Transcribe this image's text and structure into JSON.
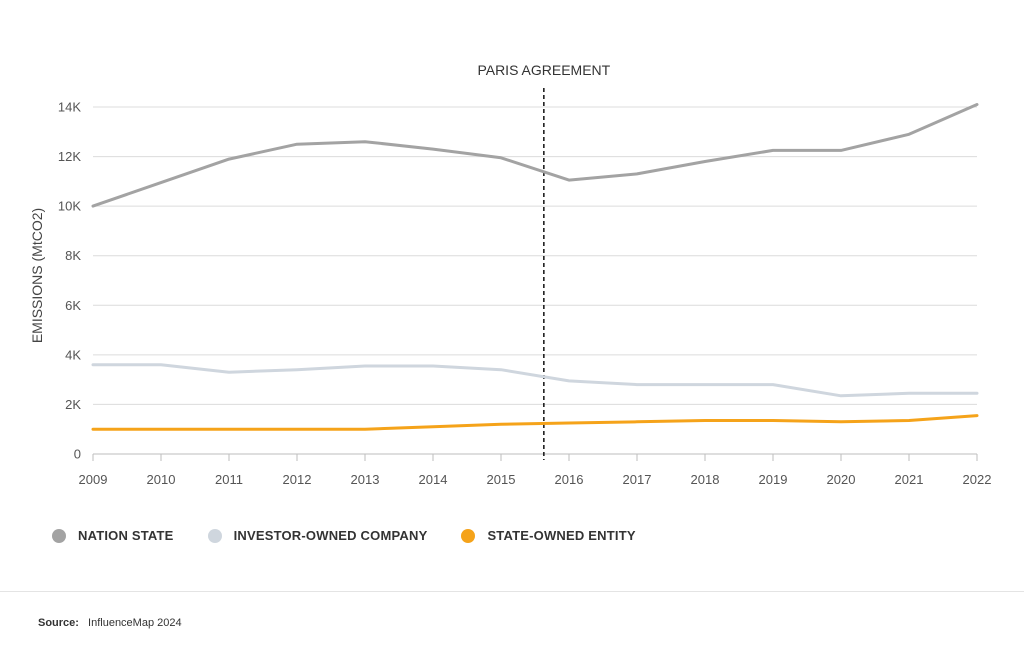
{
  "chart_data": {
    "type": "line",
    "ylabel": "EMISSIONS (MtCO2)",
    "xlabel": "",
    "x": [
      2009,
      2010,
      2011,
      2012,
      2013,
      2014,
      2015,
      2016,
      2017,
      2018,
      2019,
      2020,
      2021,
      2022
    ],
    "ylim": [
      0,
      14000
    ],
    "yticks": [
      0,
      2000,
      4000,
      6000,
      8000,
      10000,
      12000,
      14000
    ],
    "ytick_labels": [
      "0",
      "2K",
      "4K",
      "6K",
      "8K",
      "10K",
      "12K",
      "14K"
    ],
    "grid": true,
    "series": [
      {
        "name": "NATION STATE",
        "color": "#a3a3a3",
        "values": [
          10000,
          10950,
          11900,
          12500,
          12600,
          12300,
          11950,
          11050,
          11300,
          11800,
          12250,
          12250,
          12900,
          14100
        ]
      },
      {
        "name": "INVESTOR-OWNED COMPANY",
        "color": "#cfd6de",
        "values": [
          3600,
          3600,
          3300,
          3400,
          3550,
          3550,
          3400,
          2950,
          2800,
          2800,
          2800,
          2350,
          2450,
          2450
        ]
      },
      {
        "name": "STATE-OWNED ENTITY",
        "color": "#f5a31a",
        "values": [
          1000,
          1000,
          1000,
          1000,
          1000,
          1100,
          1200,
          1250,
          1300,
          1350,
          1350,
          1300,
          1350,
          1550
        ]
      }
    ],
    "annotation": {
      "label": "PARIS AGREEMENT",
      "x": 2015.63
    },
    "legend_placement": "bottom-left"
  },
  "legend": {
    "items": [
      {
        "label": "NATION STATE",
        "color": "#a3a3a3"
      },
      {
        "label": "INVESTOR-OWNED COMPANY",
        "color": "#cfd6de"
      },
      {
        "label": "STATE-OWNED ENTITY",
        "color": "#f5a31a"
      }
    ]
  },
  "source": {
    "label": "Source:",
    "text": "InfluenceMap 2024"
  }
}
